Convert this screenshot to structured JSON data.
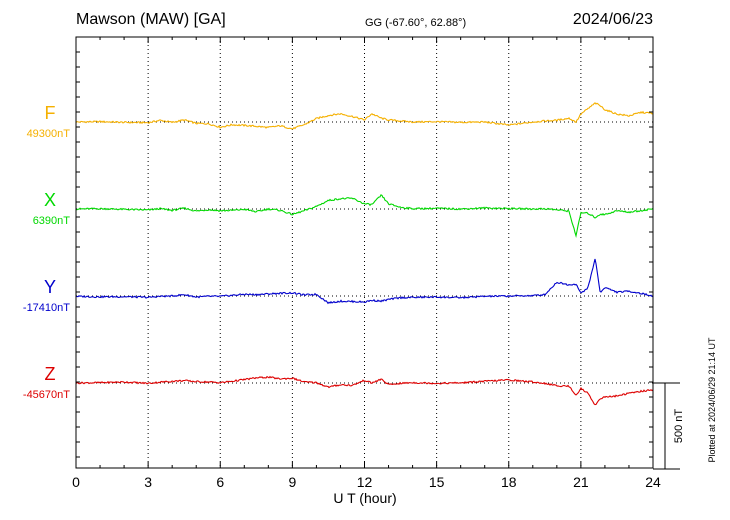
{
  "title": "Mawson (MAW)  [GA]",
  "coords": "GG (-67.60°,  62.88°)",
  "date": "2024/06/23",
  "plotted": "Plotted at 2024/06/29 21:14 UT",
  "chart_data": {
    "type": "line",
    "xlabel": "U T (hour)",
    "xlim": [
      0,
      24
    ],
    "x_ticks": [
      "0",
      "3",
      "6",
      "9",
      "12",
      "15",
      "18",
      "21",
      "24"
    ],
    "scale_label": "500 nT",
    "scale_nT": 500,
    "colors": {
      "F": "#f5b000",
      "X": "#00d800",
      "Y": "#0000cc",
      "Z": "#dd0000"
    },
    "series": [
      {
        "name": "F",
        "baseline_label": "49300nT",
        "baseline_nT": 49300,
        "x": [
          0,
          1,
          2,
          3,
          3.5,
          4,
          4.5,
          5,
          5.5,
          6,
          6.5,
          7,
          7.5,
          8,
          8.5,
          9,
          9.5,
          10,
          10.5,
          11,
          11.5,
          12,
          12.3,
          12.7,
          13,
          13.5,
          14,
          15,
          16,
          17,
          18,
          19,
          19.5,
          20,
          20.5,
          20.8,
          21,
          21.3,
          21.6,
          21.8,
          22,
          22.5,
          23,
          23.5,
          24
        ],
        "y": [
          49300,
          49302,
          49298,
          49296,
          49310,
          49298,
          49312,
          49292,
          49290,
          49270,
          49284,
          49280,
          49275,
          49268,
          49278,
          49260,
          49285,
          49320,
          49338,
          49348,
          49332,
          49312,
          49348,
          49322,
          49312,
          49306,
          49300,
          49302,
          49298,
          49300,
          49282,
          49300,
          49306,
          49310,
          49322,
          49300,
          49346,
          49378,
          49410,
          49395,
          49372,
          49346,
          49336,
          49356,
          49350
        ]
      },
      {
        "name": "X",
        "baseline_label": "6390nT",
        "baseline_nT": 6390,
        "x": [
          0,
          1,
          2,
          3,
          3.5,
          4,
          4.5,
          5,
          5.5,
          6,
          6.5,
          7,
          7.5,
          8,
          8.5,
          9,
          9.5,
          10,
          10.5,
          11,
          11.5,
          12,
          12.3,
          12.7,
          13,
          13.5,
          14,
          15,
          16,
          17,
          18,
          19,
          19.5,
          20,
          20.5,
          20.8,
          21,
          21.3,
          21.6,
          21.8,
          22,
          22.5,
          23,
          23.5,
          24
        ],
        "y": [
          6390,
          6392,
          6388,
          6384,
          6392,
          6382,
          6395,
          6378,
          6386,
          6380,
          6382,
          6388,
          6374,
          6390,
          6382,
          6358,
          6380,
          6405,
          6440,
          6450,
          6452,
          6420,
          6415,
          6470,
          6420,
          6400,
          6392,
          6394,
          6390,
          6396,
          6393,
          6390,
          6392,
          6385,
          6378,
          6235,
          6368,
          6365,
          6340,
          6360,
          6358,
          6380,
          6372,
          6380,
          6392
        ]
      },
      {
        "name": "Y",
        "baseline_label": "-17410nT",
        "baseline_nT": -17410,
        "x": [
          0,
          1,
          2,
          3,
          3.5,
          4,
          4.5,
          5,
          5.5,
          6,
          6.5,
          7,
          7.5,
          8,
          8.5,
          9,
          9.5,
          10,
          10.5,
          11,
          11.5,
          12,
          12.3,
          12.7,
          13,
          13.5,
          14,
          15,
          16,
          17,
          18,
          19,
          19.5,
          20,
          20.5,
          20.8,
          21,
          21.3,
          21.6,
          21.8,
          22,
          22.5,
          23,
          23.5,
          24
        ],
        "y": [
          -17412,
          -17415,
          -17414,
          -17418,
          -17412,
          -17410,
          -17402,
          -17416,
          -17412,
          -17412,
          -17406,
          -17400,
          -17402,
          -17398,
          -17394,
          -17392,
          -17404,
          -17400,
          -17450,
          -17440,
          -17442,
          -17445,
          -17435,
          -17440,
          -17430,
          -17420,
          -17418,
          -17416,
          -17420,
          -17412,
          -17410,
          -17408,
          -17402,
          -17330,
          -17345,
          -17340,
          -17395,
          -17360,
          -17190,
          -17390,
          -17360,
          -17388,
          -17382,
          -17395,
          -17410
        ]
      },
      {
        "name": "Z",
        "baseline_label": "-45670nT",
        "baseline_nT": -45670,
        "x": [
          0,
          1,
          2,
          3,
          3.5,
          4,
          4.5,
          5,
          5.5,
          6,
          6.5,
          7,
          7.5,
          8,
          8.5,
          9,
          9.5,
          10,
          10.5,
          11,
          11.5,
          12,
          12.3,
          12.7,
          13,
          13.5,
          14,
          15,
          16,
          17,
          18,
          19,
          19.5,
          20,
          20.5,
          20.8,
          21,
          21.3,
          21.6,
          21.8,
          22,
          22.5,
          23,
          23.5,
          24
        ],
        "y": [
          -45670,
          -45668,
          -45664,
          -45672,
          -45665,
          -45660,
          -45656,
          -45662,
          -45664,
          -45668,
          -45660,
          -45650,
          -45640,
          -45636,
          -45646,
          -45642,
          -45664,
          -45668,
          -45694,
          -45680,
          -45684,
          -45654,
          -45670,
          -45648,
          -45680,
          -45672,
          -45668,
          -45672,
          -45669,
          -45660,
          -45652,
          -45664,
          -45672,
          -45686,
          -45688,
          -45740,
          -45702,
          -45730,
          -45800,
          -45760,
          -45752,
          -45745,
          -45730,
          -45718,
          -45710
        ]
      }
    ]
  }
}
